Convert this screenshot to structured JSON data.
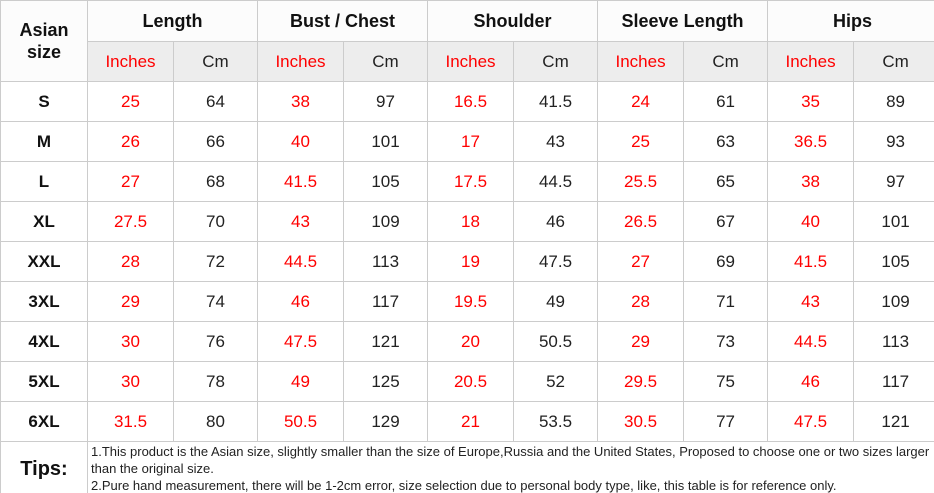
{
  "table": {
    "corner_header": "Asian size",
    "column_groups": [
      {
        "label": "Length"
      },
      {
        "label": "Bust / Chest"
      },
      {
        "label": "Shoulder"
      },
      {
        "label": "Sleeve Length"
      },
      {
        "label": "Hips"
      }
    ],
    "unit_headers": {
      "inches": "Inches",
      "cm": "Cm"
    },
    "rows": [
      {
        "size": "S",
        "values": [
          "25",
          "64",
          "38",
          "97",
          "16.5",
          "41.5",
          "24",
          "61",
          "35",
          "89"
        ]
      },
      {
        "size": "M",
        "values": [
          "26",
          "66",
          "40",
          "101",
          "17",
          "43",
          "25",
          "63",
          "36.5",
          "93"
        ]
      },
      {
        "size": "L",
        "values": [
          "27",
          "68",
          "41.5",
          "105",
          "17.5",
          "44.5",
          "25.5",
          "65",
          "38",
          "97"
        ]
      },
      {
        "size": "XL",
        "values": [
          "27.5",
          "70",
          "43",
          "109",
          "18",
          "46",
          "26.5",
          "67",
          "40",
          "101"
        ]
      },
      {
        "size": "XXL",
        "values": [
          "28",
          "72",
          "44.5",
          "113",
          "19",
          "47.5",
          "27",
          "69",
          "41.5",
          "105"
        ]
      },
      {
        "size": "3XL",
        "values": [
          "29",
          "74",
          "46",
          "117",
          "19.5",
          "49",
          "28",
          "71",
          "43",
          "109"
        ]
      },
      {
        "size": "4XL",
        "values": [
          "30",
          "76",
          "47.5",
          "121",
          "20",
          "50.5",
          "29",
          "73",
          "44.5",
          "113"
        ]
      },
      {
        "size": "5XL",
        "values": [
          "30",
          "78",
          "49",
          "125",
          "20.5",
          "52",
          "29.5",
          "75",
          "46",
          "117"
        ]
      },
      {
        "size": "6XL",
        "values": [
          "31.5",
          "80",
          "50.5",
          "129",
          "21",
          "53.5",
          "30.5",
          "77",
          "47.5",
          "121"
        ]
      }
    ],
    "tips": {
      "label": "Tips:",
      "lines": [
        "1.This product is the Asian size, slightly smaller than the size of Europe,Russia and the United States, Proposed to choose one or two sizes larger than the original size.",
        "2.Pure hand measurement, there will be 1-2cm error, size selection due to personal body type, like, this table is for reference only."
      ]
    }
  },
  "colors": {
    "inches_text": "#ff0000",
    "cm_text": "#222222",
    "border": "#cccccc",
    "subheader_bg": "#ededed"
  }
}
